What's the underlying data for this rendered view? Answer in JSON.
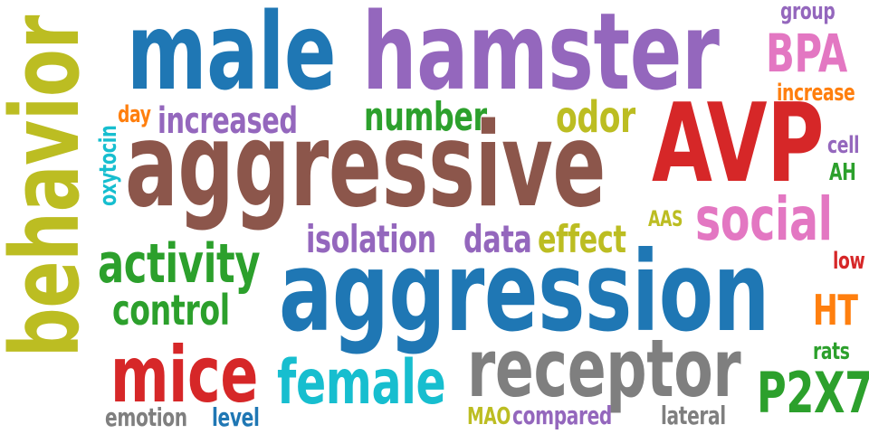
{
  "words": {
    "aggressive": {
      "text": "aggressive",
      "color": "#8c564b"
    },
    "aggression": {
      "text": "aggression",
      "color": "#1f77b4"
    },
    "hamster": {
      "text": "hamster",
      "color": "#9467bd"
    },
    "male": {
      "text": "male",
      "color": "#1f77b4"
    },
    "behavior": {
      "text": "behavior",
      "color": "#bcbd22"
    },
    "avp": {
      "text": "AVP",
      "color": "#d62728"
    },
    "receptor": {
      "text": "receptor",
      "color": "#7f7f7f"
    },
    "social": {
      "text": "social",
      "color": "#e377c2"
    },
    "mice": {
      "text": "mice",
      "color": "#d62728"
    },
    "female": {
      "text": "female",
      "color": "#17becf"
    },
    "activity": {
      "text": "activity",
      "color": "#2ca02c"
    },
    "increased": {
      "text": "increased",
      "color": "#9467bd"
    },
    "number": {
      "text": "number",
      "color": "#2ca02c"
    },
    "odor": {
      "text": "odor",
      "color": "#bcbd22"
    },
    "isolation": {
      "text": "isolation",
      "color": "#9467bd"
    },
    "data": {
      "text": "data",
      "color": "#9467bd"
    },
    "effect": {
      "text": "effect",
      "color": "#bcbd22"
    },
    "control": {
      "text": "control",
      "color": "#2ca02c"
    },
    "bpa": {
      "text": "BPA",
      "color": "#e377c2"
    },
    "p2x7": {
      "text": "P2X7",
      "color": "#2ca02c"
    },
    "ht": {
      "text": "HT",
      "color": "#ff7f0e"
    },
    "increase": {
      "text": "increase",
      "color": "#ff7f0e"
    },
    "group": {
      "text": "group",
      "color": "#9467bd"
    },
    "day": {
      "text": "day",
      "color": "#ff7f0e"
    },
    "oxytocin": {
      "text": "oxytocin",
      "color": "#17becf"
    },
    "cell": {
      "text": "cell",
      "color": "#9467bd"
    },
    "ah": {
      "text": "AH",
      "color": "#2ca02c"
    },
    "aas": {
      "text": "AAS",
      "color": "#bcbd22"
    },
    "low": {
      "text": "low",
      "color": "#d62728"
    },
    "rats": {
      "text": "rats",
      "color": "#2ca02c"
    },
    "emotion": {
      "text": "emotion",
      "color": "#7f7f7f"
    },
    "level": {
      "text": "level",
      "color": "#1f77b4"
    },
    "mao": {
      "text": "MAO",
      "color": "#bcbd22"
    },
    "compared": {
      "text": "compared",
      "color": "#9467bd"
    },
    "lateral": {
      "text": "lateral",
      "color": "#7f7f7f"
    }
  }
}
